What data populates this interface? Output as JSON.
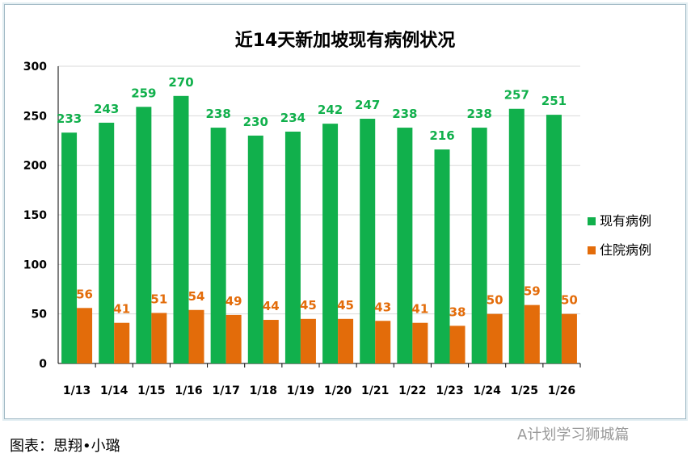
{
  "chart_data": {
    "type": "bar",
    "title": "近14天新加坡现有病例状况",
    "categories": [
      "1/13",
      "1/14",
      "1/15",
      "1/16",
      "1/17",
      "1/18",
      "1/19",
      "1/20",
      "1/21",
      "1/22",
      "1/23",
      "1/24",
      "1/25",
      "1/26"
    ],
    "series": [
      {
        "name": "现有病例",
        "color": "#11b04c",
        "values": [
          233,
          243,
          259,
          270,
          238,
          230,
          234,
          242,
          247,
          238,
          216,
          238,
          257,
          251
        ]
      },
      {
        "name": "住院病例",
        "color": "#e36c0a",
        "values": [
          56,
          41,
          51,
          54,
          49,
          44,
          45,
          45,
          43,
          41,
          38,
          50,
          59,
          50
        ]
      }
    ],
    "ylim": [
      0,
      300
    ],
    "yticks": [
      0,
      50,
      100,
      150,
      200,
      250,
      300
    ],
    "grid": true,
    "legend": "right",
    "data_labels": true
  },
  "caption": "图表：思翔•小璐",
  "watermark": "A计划学习狮城篇"
}
